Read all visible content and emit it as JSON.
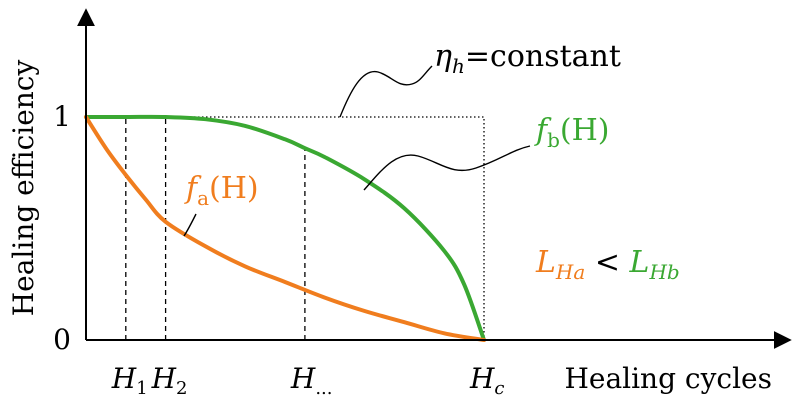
{
  "chart_data": {
    "type": "line",
    "title": "",
    "xlabel": "Healing cycles",
    "ylabel": "Healing efficiency",
    "yticks": [
      {
        "value": 0,
        "label": "0"
      },
      {
        "value": 1,
        "label": "1"
      }
    ],
    "xticks": [
      {
        "value": 0.1,
        "main": "H",
        "sub": "1"
      },
      {
        "value": 0.2,
        "main": "H",
        "sub": "2"
      },
      {
        "value": 0.55,
        "main": "H",
        "sub": "..."
      },
      {
        "value": 1.0,
        "main": "H",
        "sub": "c"
      }
    ],
    "xlim": [
      0,
      1.6
    ],
    "ylim": [
      0,
      1.25
    ],
    "grid": false,
    "series": [
      {
        "name": "f_a(H)",
        "label_main": "f",
        "label_sub": "a",
        "label_arg": "(H)",
        "color": "#f07d1e",
        "x": [
          0,
          0.05,
          0.1,
          0.15,
          0.2,
          0.3,
          0.4,
          0.5,
          0.6,
          0.7,
          0.8,
          0.9,
          1.0
        ],
        "y": [
          1.0,
          0.86,
          0.74,
          0.63,
          0.53,
          0.42,
          0.33,
          0.26,
          0.19,
          0.13,
          0.08,
          0.03,
          0.0
        ]
      },
      {
        "name": "f_b(H)",
        "label_main": "f",
        "label_sub": "b",
        "label_arg": "(H)",
        "color": "#3aa832",
        "x": [
          0,
          0.1,
          0.2,
          0.3,
          0.4,
          0.5,
          0.55,
          0.6,
          0.7,
          0.8,
          0.9,
          0.95,
          1.0
        ],
        "y": [
          1.0,
          1.0,
          1.0,
          0.99,
          0.96,
          0.9,
          0.86,
          0.82,
          0.72,
          0.59,
          0.4,
          0.25,
          0.0
        ]
      },
      {
        "name": "η_h=constant",
        "label_main": "η",
        "label_sub": "h",
        "label_arg": "=constant",
        "color": "#000000",
        "style": "dotted",
        "x": [
          0,
          1.0,
          1.0
        ],
        "y": [
          1.0,
          1.0,
          0.0
        ]
      }
    ],
    "annotation": {
      "left": "L",
      "left_sub": "Ha",
      "left_color": "#f07d1e",
      "op": "<",
      "right": "L",
      "right_sub": "Hb",
      "right_color": "#3aa832"
    }
  }
}
